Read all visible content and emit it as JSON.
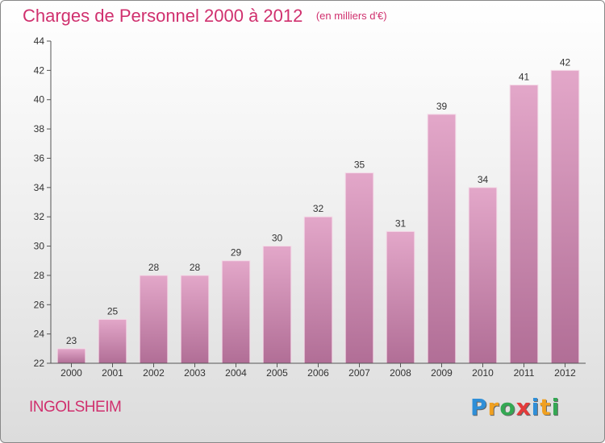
{
  "chart_data": {
    "type": "bar",
    "title": "Charges de Personnel 2000 à 2012",
    "subtitle": "(en milliers d'€)",
    "categories": [
      "2000",
      "2001",
      "2002",
      "2003",
      "2004",
      "2005",
      "2006",
      "2007",
      "2008",
      "2009",
      "2010",
      "2011",
      "2012"
    ],
    "values": [
      23,
      25,
      28,
      28,
      29,
      30,
      32,
      35,
      31,
      39,
      34,
      41,
      42
    ],
    "ylim": [
      22,
      44
    ],
    "yticks": [
      22,
      24,
      26,
      28,
      30,
      32,
      34,
      36,
      38,
      40,
      42,
      44
    ],
    "grid": false,
    "legend": "none",
    "colors": {
      "bar_top": "#e3a7c9",
      "bar_bottom": "#b16e96",
      "title": "#d0306e"
    }
  },
  "commune": "INGOLSHEIM",
  "logo": {
    "letters": [
      "P",
      "r",
      "o",
      "x",
      "i",
      "t",
      "i"
    ],
    "colors": [
      "#2f8fd8",
      "#f0a020",
      "#34a853",
      "#e43b3b",
      "#2f8fd8",
      "#f0a020",
      "#34a853"
    ]
  }
}
